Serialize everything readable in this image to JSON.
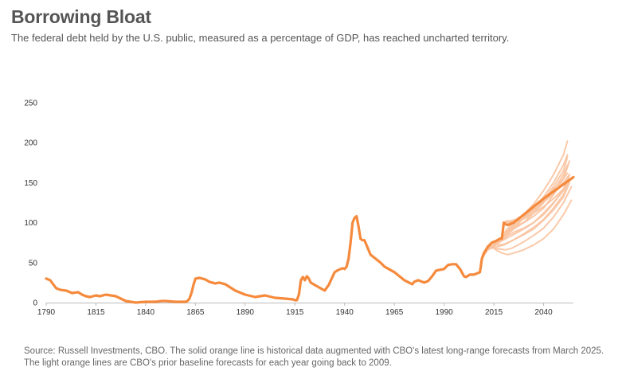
{
  "title": "Borrowing Bloat",
  "subtitle": "The federal debt held by the U.S. public, measured as a percentage of GDP, has reached uncharted territory.",
  "source": "Source: Russell Investments, CBO. The solid orange line is historical data augmented with CBO's latest long-range forecasts from March 2025. The light orange lines are CBO's prior baseline forecasts for each year going back to 2009.",
  "colors": {
    "main": "#f58a3d",
    "prior": "#f9c3a0",
    "axis": "#bbbbbb",
    "text": "#555555"
  },
  "chart_data": {
    "type": "line",
    "xlim": [
      1790,
      2055
    ],
    "ylim": [
      0,
      250
    ],
    "x_ticks": [
      "1790",
      "1815",
      "1840",
      "1865",
      "1890",
      "1915",
      "1940",
      "1965",
      "1990",
      "2015",
      "2040"
    ],
    "y_ticks": [
      "0",
      "50",
      "100",
      "150",
      "200",
      "250"
    ],
    "grid": false,
    "series": [
      {
        "role": "historical-and-current-forecast",
        "x": [
          1790,
          1792,
          1795,
          1797,
          1800,
          1803,
          1806,
          1808,
          1810,
          1812,
          1815,
          1817,
          1820,
          1825,
          1830,
          1835,
          1840,
          1845,
          1848,
          1850,
          1855,
          1860,
          1861,
          1862,
          1863,
          1864,
          1865,
          1867,
          1870,
          1872,
          1875,
          1877,
          1880,
          1885,
          1890,
          1895,
          1900,
          1905,
          1910,
          1914,
          1915,
          1916,
          1917,
          1918,
          1919,
          1920,
          1921,
          1922,
          1923,
          1925,
          1930,
          1932,
          1935,
          1937,
          1939,
          1940,
          1941,
          1942,
          1943,
          1944,
          1945,
          1946,
          1947,
          1948,
          1949,
          1950,
          1953,
          1955,
          1958,
          1960,
          1965,
          1970,
          1974,
          1975,
          1977,
          1980,
          1982,
          1984,
          1986,
          1988,
          1990,
          1992,
          1994,
          1996,
          1998,
          2000,
          2001,
          2003,
          2005,
          2007,
          2008,
          2009,
          2010,
          2012,
          2014,
          2016,
          2018,
          2019,
          2020,
          2021,
          2022,
          2023,
          2024,
          2025,
          2030,
          2035,
          2040,
          2045,
          2050,
          2055
        ],
        "y": [
          30,
          28,
          18,
          16,
          15,
          12,
          13,
          10,
          8,
          7,
          9,
          8,
          10,
          8,
          2,
          0,
          1,
          1,
          2,
          2,
          1,
          1,
          2,
          5,
          12,
          22,
          30,
          31,
          29,
          26,
          24,
          25,
          23,
          15,
          10,
          7,
          9,
          6,
          5,
          4,
          3,
          3,
          10,
          28,
          32,
          28,
          33,
          30,
          25,
          22,
          15,
          22,
          38,
          41,
          43,
          42,
          45,
          55,
          75,
          100,
          106,
          108,
          95,
          80,
          78,
          78,
          60,
          56,
          50,
          45,
          38,
          28,
          23,
          26,
          28,
          25,
          27,
          33,
          40,
          41,
          42,
          47,
          48,
          48,
          42,
          33,
          32,
          35,
          35,
          37,
          38,
          55,
          62,
          70,
          75,
          77,
          80,
          80,
          100,
          98,
          97,
          98,
          99,
          100,
          110,
          120,
          130,
          139,
          148,
          157
        ]
      }
    ],
    "prior_forecasts": [
      {
        "x": [
          2009,
          2012,
          2015,
          2018,
          2021,
          2025,
          2030,
          2035,
          2040,
          2045,
          2050,
          2052
        ],
        "y": [
          55,
          68,
          72,
          79,
          90,
          100,
          110,
          123,
          140,
          160,
          185,
          202
        ]
      },
      {
        "x": [
          2009,
          2012,
          2015,
          2018,
          2021,
          2025,
          2030,
          2035,
          2040,
          2045,
          2050,
          2052
        ],
        "y": [
          55,
          66,
          70,
          78,
          88,
          97,
          105,
          115,
          128,
          145,
          165,
          182
        ]
      },
      {
        "x": [
          2010,
          2013,
          2016,
          2019,
          2022,
          2025,
          2030,
          2035,
          2040,
          2045,
          2050,
          2053
        ],
        "y": [
          62,
          70,
          73,
          80,
          88,
          95,
          100,
          108,
          118,
          135,
          155,
          177
        ]
      },
      {
        "x": [
          2010,
          2013,
          2016,
          2019,
          2022,
          2025,
          2030,
          2035,
          2040,
          2045,
          2050,
          2053
        ],
        "y": [
          62,
          68,
          72,
          78,
          84,
          88,
          93,
          100,
          112,
          125,
          140,
          160
        ]
      },
      {
        "x": [
          2011,
          2014,
          2017,
          2020,
          2023,
          2026,
          2030,
          2035,
          2040,
          2045,
          2050,
          2053
        ],
        "y": [
          66,
          68,
          70,
          72,
          76,
          80,
          85,
          92,
          103,
          116,
          132,
          150
        ]
      },
      {
        "x": [
          2012,
          2015,
          2018,
          2021,
          2024,
          2027,
          2030,
          2035,
          2040,
          2045,
          2050,
          2054
        ],
        "y": [
          70,
          68,
          67,
          66,
          68,
          72,
          76,
          84,
          93,
          107,
          125,
          145
        ]
      },
      {
        "x": [
          2013,
          2016,
          2019,
          2022,
          2025,
          2030,
          2035,
          2040,
          2045,
          2050,
          2054
        ],
        "y": [
          72,
          66,
          62,
          60,
          62,
          66,
          72,
          80,
          92,
          110,
          128
        ]
      },
      {
        "x": [
          2014,
          2017,
          2020,
          2023,
          2026,
          2030,
          2035,
          2040,
          2045,
          2050,
          2053
        ],
        "y": [
          74,
          72,
          73,
          76,
          80,
          86,
          94,
          104,
          118,
          135,
          152
        ]
      },
      {
        "x": [
          2015,
          2018,
          2021,
          2024,
          2027,
          2030,
          2035,
          2040,
          2045,
          2050,
          2053
        ],
        "y": [
          74,
          76,
          80,
          84,
          88,
          92,
          100,
          110,
          124,
          142,
          160
        ]
      },
      {
        "x": [
          2016,
          2019,
          2022,
          2025,
          2030,
          2035,
          2040,
          2045,
          2050,
          2052
        ],
        "y": [
          76,
          80,
          86,
          92,
          100,
          112,
          125,
          140,
          160,
          172
        ]
      },
      {
        "x": [
          2018,
          2021,
          2024,
          2027,
          2030,
          2035,
          2040,
          2045,
          2050,
          2052
        ],
        "y": [
          78,
          85,
          92,
          98,
          106,
          118,
          132,
          150,
          172,
          185
        ]
      },
      {
        "x": [
          2020,
          2023,
          2026,
          2030,
          2035,
          2040,
          2045,
          2050,
          2052
        ],
        "y": [
          100,
          102,
          104,
          110,
          120,
          130,
          142,
          155,
          162
        ]
      },
      {
        "x": [
          2021,
          2024,
          2027,
          2030,
          2035,
          2040,
          2045,
          2050,
          2053
        ],
        "y": [
          102,
          102,
          104,
          108,
          116,
          126,
          136,
          150,
          160
        ]
      },
      {
        "x": [
          2022,
          2025,
          2028,
          2031,
          2035,
          2040,
          2045,
          2050,
          2054
        ],
        "y": [
          100,
          101,
          103,
          106,
          112,
          120,
          130,
          142,
          155
        ]
      }
    ]
  }
}
